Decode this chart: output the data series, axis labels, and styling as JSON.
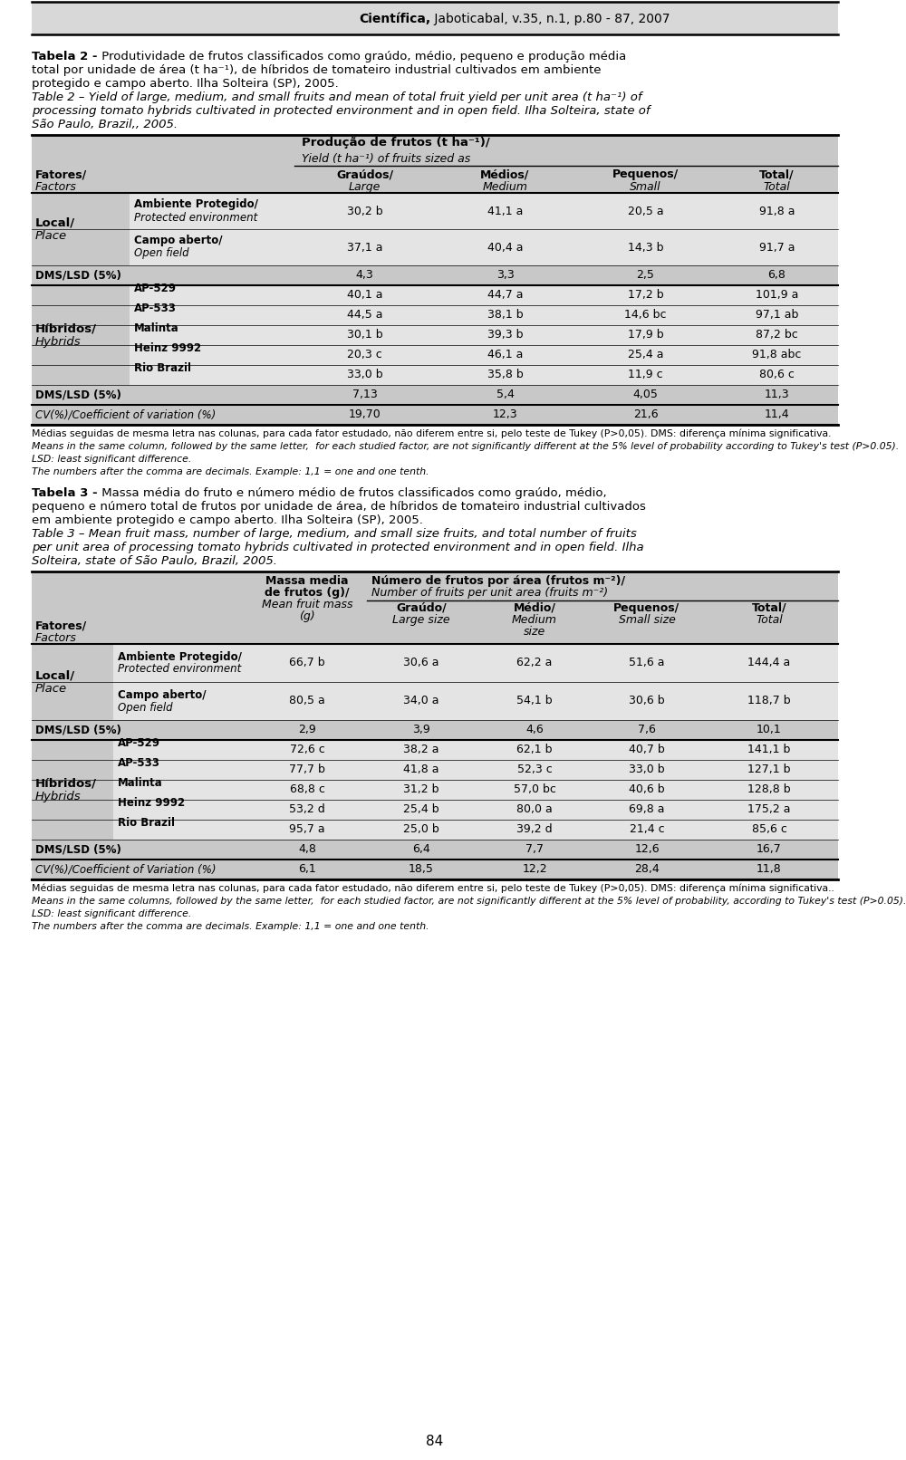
{
  "header_text_bold": "Científica,",
  "header_text_rest": " Jaboticabal, v.35, n.1, p.80 - 87, 2007",
  "table2_rows": [
    {
      "factor": "Ambiente Protegido/",
      "factor_it": "Protected environment",
      "values": [
        "30,2 b",
        "41,1 a",
        "20,5 a",
        "91,8 a"
      ],
      "group": "local"
    },
    {
      "factor": "Campo aberto/",
      "factor_it": "Open field",
      "values": [
        "37,1 a",
        "40,4 a",
        "14,3 b",
        "91,7 a"
      ],
      "group": "local"
    },
    {
      "factor": "DMS/LSD (5%)",
      "factor_it": "",
      "values": [
        "4,3",
        "3,3",
        "2,5",
        "6,8"
      ],
      "group": "dms"
    },
    {
      "factor": "AP-529",
      "factor_it": "",
      "values": [
        "40,1 a",
        "44,7 a",
        "17,2 b",
        "101,9 a"
      ],
      "group": "hybrid"
    },
    {
      "factor": "AP-533",
      "factor_it": "",
      "values": [
        "44,5 a",
        "38,1 b",
        "14,6 bc",
        "97,1 ab"
      ],
      "group": "hybrid"
    },
    {
      "factor": "Malinta",
      "factor_it": "",
      "values": [
        "30,1 b",
        "39,3 b",
        "17,9 b",
        "87,2 bc"
      ],
      "group": "hybrid"
    },
    {
      "factor": "Heinz 9992",
      "factor_it": "",
      "values": [
        "20,3 c",
        "46,1 a",
        "25,4 a",
        "91,8 abc"
      ],
      "group": "hybrid"
    },
    {
      "factor": "Rio Brazil",
      "factor_it": "",
      "values": [
        "33,0 b",
        "35,8 b",
        "11,9 c",
        "80,6 c"
      ],
      "group": "hybrid"
    },
    {
      "factor": "DMS/LSD (5%)",
      "factor_it": "",
      "values": [
        "7,13",
        "5,4",
        "4,05",
        "11,3"
      ],
      "group": "dms2"
    },
    {
      "factor": "CV(%)/Coefficient of variation (%)",
      "factor_it": "",
      "values": [
        "19,70",
        "12,3",
        "21,6",
        "11,4"
      ],
      "group": "cv"
    }
  ],
  "table3_rows": [
    {
      "factor": "Ambiente Protegido/",
      "factor_it": "Protected environment",
      "mass": "66,7 b",
      "values": [
        "30,6 a",
        "62,2 a",
        "51,6 a",
        "144,4 a"
      ],
      "group": "local"
    },
    {
      "factor": "Campo aberto/",
      "factor_it": "Open field",
      "mass": "80,5 a",
      "values": [
        "34,0 a",
        "54,1 b",
        "30,6 b",
        "118,7 b"
      ],
      "group": "local"
    },
    {
      "factor": "DMS/LSD (5%)",
      "factor_it": "",
      "mass": "2,9",
      "values": [
        "3,9",
        "4,6",
        "7,6",
        "10,1"
      ],
      "group": "dms"
    },
    {
      "factor": "AP-529",
      "factor_it": "",
      "mass": "72,6 c",
      "values": [
        "38,2 a",
        "62,1 b",
        "40,7 b",
        "141,1 b"
      ],
      "group": "hybrid"
    },
    {
      "factor": "AP-533",
      "factor_it": "",
      "mass": "77,7 b",
      "values": [
        "41,8 a",
        "52,3 c",
        "33,0 b",
        "127,1 b"
      ],
      "group": "hybrid"
    },
    {
      "factor": "Malinta",
      "factor_it": "",
      "mass": "68,8 c",
      "values": [
        "31,2 b",
        "57,0 bc",
        "40,6 b",
        "128,8 b"
      ],
      "group": "hybrid"
    },
    {
      "factor": "Heinz 9992",
      "factor_it": "",
      "mass": "53,2 d",
      "values": [
        "25,4 b",
        "80,0 a",
        "69,8 a",
        "175,2 a"
      ],
      "group": "hybrid"
    },
    {
      "factor": "Rio Brazil",
      "factor_it": "",
      "mass": "95,7 a",
      "values": [
        "25,0 b",
        "39,2 d",
        "21,4 c",
        "85,6 c"
      ],
      "group": "hybrid"
    },
    {
      "factor": "DMS/LSD (5%)",
      "factor_it": "",
      "mass": "4,8",
      "values": [
        "6,4",
        "7,7",
        "12,6",
        "16,7"
      ],
      "group": "dms2"
    },
    {
      "factor": "CV(%)/Coefficient of Variation (%)",
      "factor_it": "",
      "mass": "6,1",
      "values": [
        "18,5",
        "12,2",
        "28,4",
        "11,8"
      ],
      "group": "cv"
    }
  ],
  "page_num": "84",
  "bg_color": "#ffffff",
  "header_bg": "#d8d8d8",
  "row_bg_dark": "#c8c8c8",
  "row_bg_light": "#e4e4e4"
}
